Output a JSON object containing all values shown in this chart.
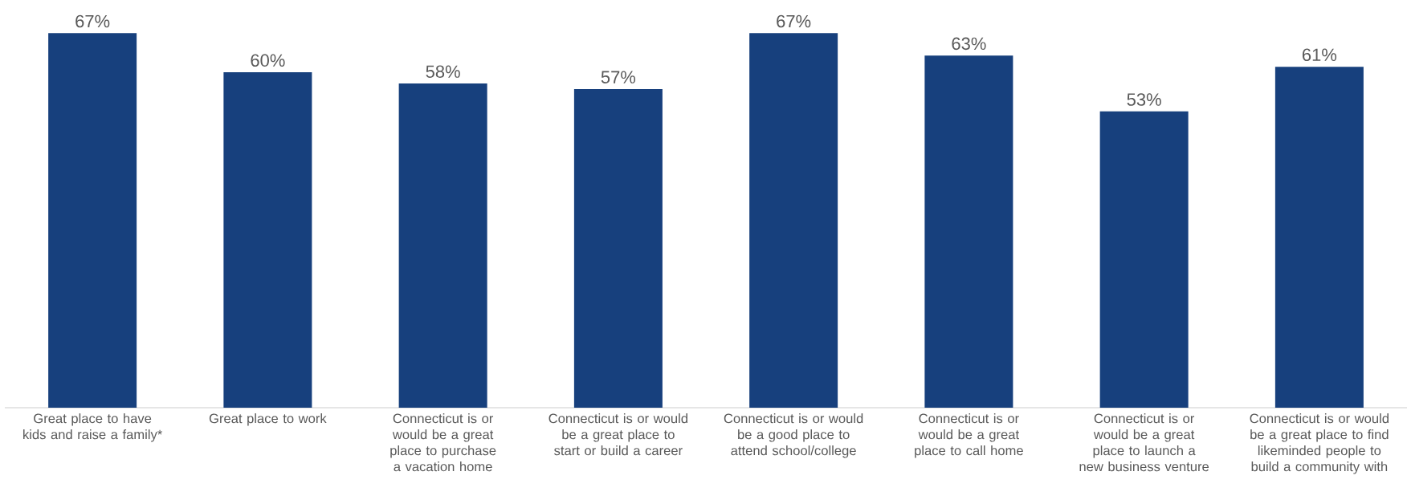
{
  "chart_data": {
    "type": "bar",
    "categories": [
      "Great place to have kids and raise a family*",
      "Great place to work",
      "Connecticut is or would be a great place to purchase a vacation home",
      "Connecticut is or would be a great place to start or build a career",
      "Connecticut is or would be a good place to attend school/college",
      "Connecticut is or would be a great place to call home",
      "Connecticut is or would be a great place to launch a new business venture",
      "Connecticut is or would be a great place to find likeminded people to build a community with"
    ],
    "values": [
      67,
      60,
      58,
      57,
      67,
      63,
      53,
      61
    ],
    "value_labels": [
      "67%",
      "60%",
      "58%",
      "57%",
      "67%",
      "63%",
      "53%",
      "61%"
    ],
    "color": "#17407d",
    "tick_labels": "x"
  }
}
